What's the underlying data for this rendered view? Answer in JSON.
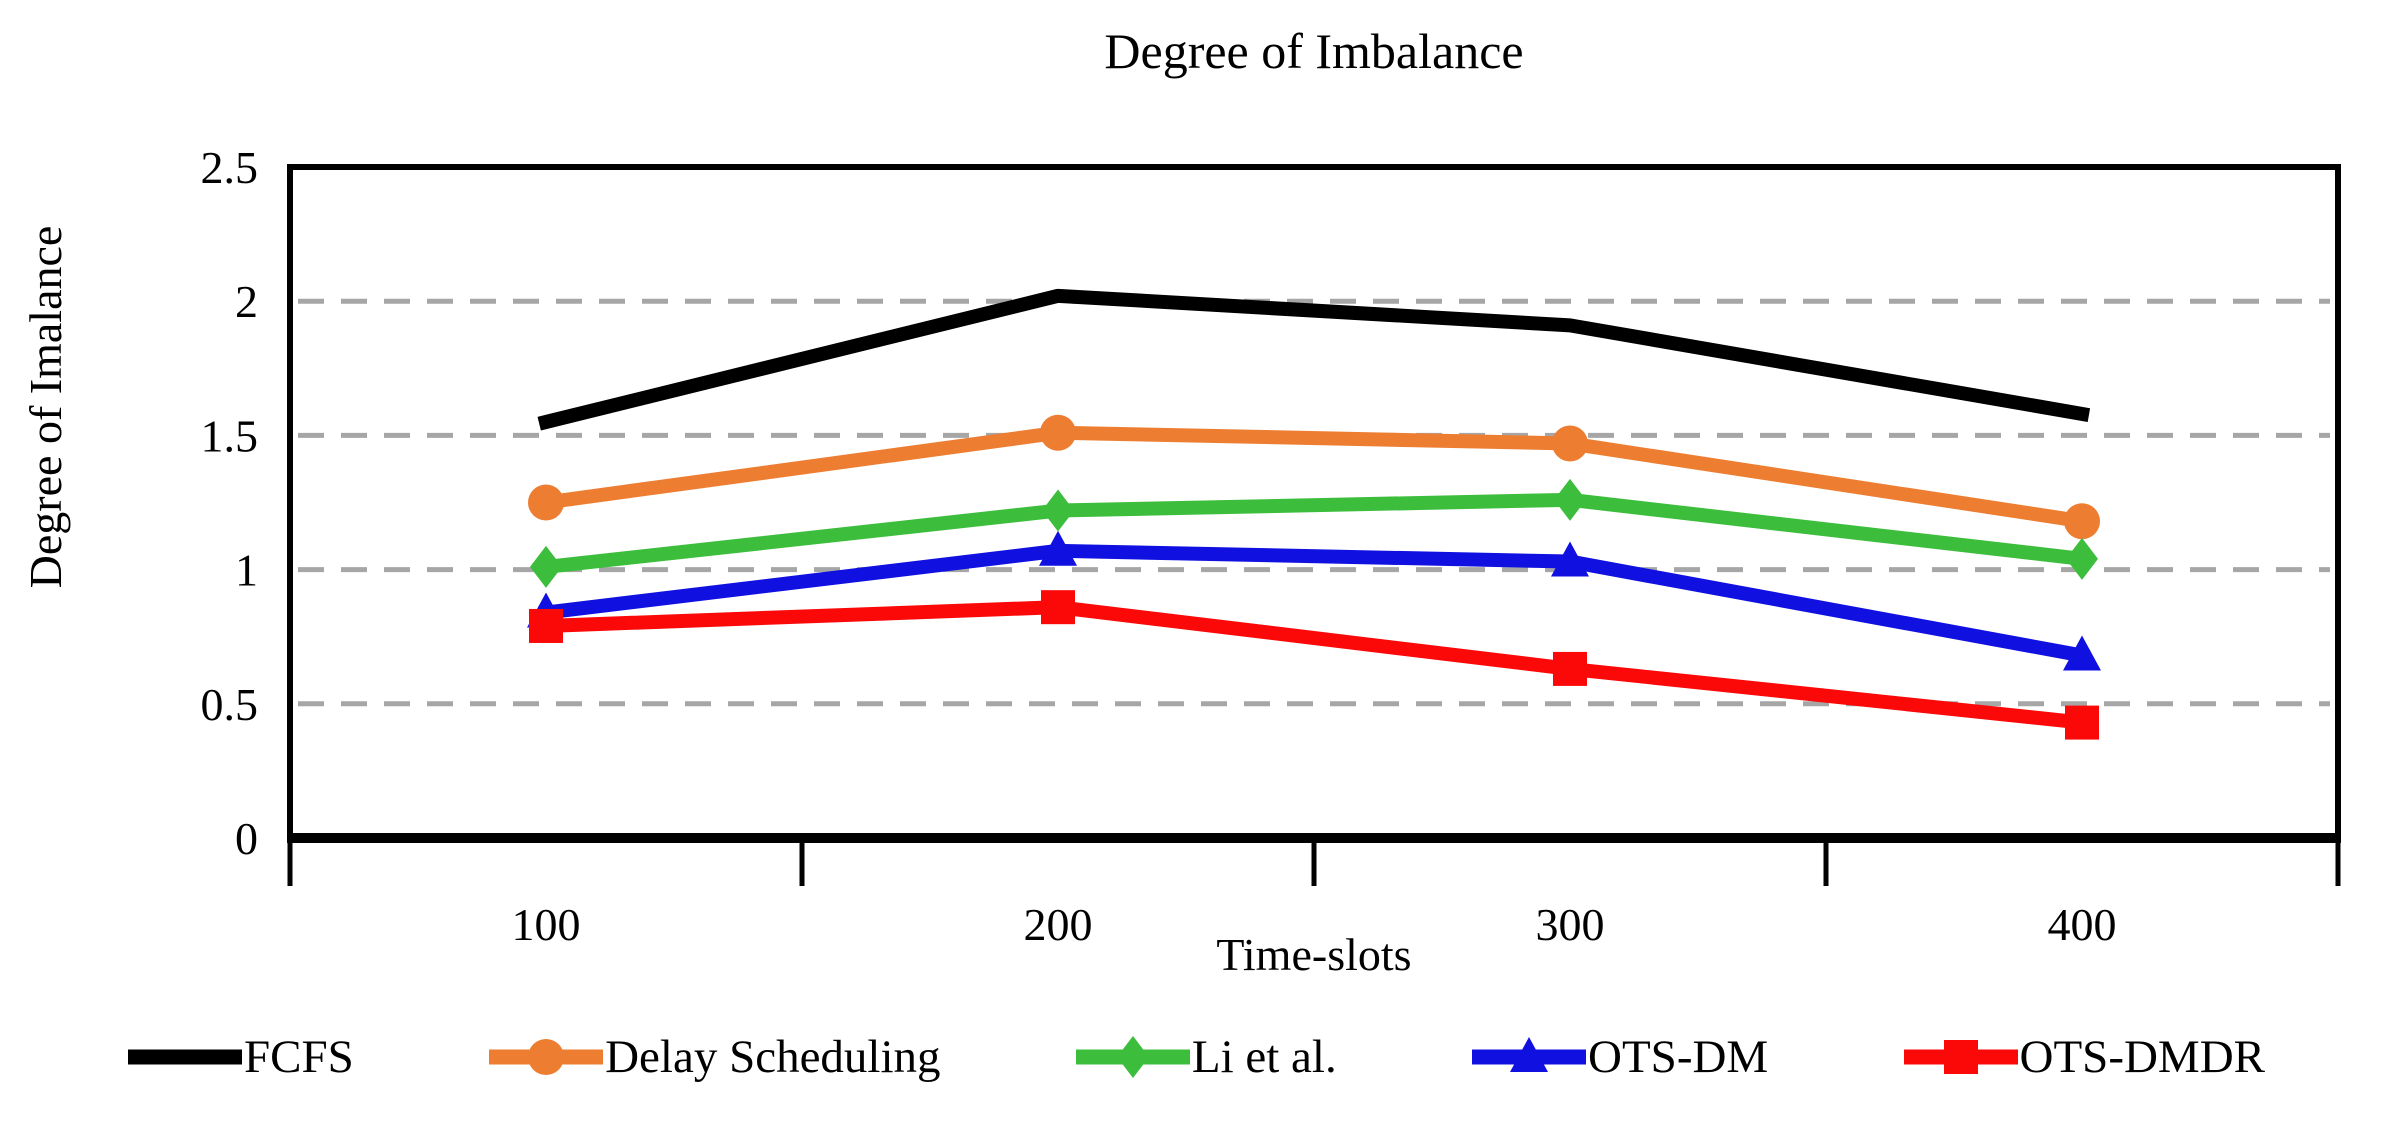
{
  "chart_data": {
    "type": "line",
    "title": "Degree of Imbalance",
    "xlabel": "Time-slots",
    "ylabel": "Degree of Imalance",
    "categories": [
      "100",
      "200",
      "300",
      "400"
    ],
    "ylim": [
      0,
      2.5
    ],
    "yticks": [
      {
        "value": 0,
        "label": "0"
      },
      {
        "value": 0.5,
        "label": "0.5"
      },
      {
        "value": 1,
        "label": "1"
      },
      {
        "value": 1.5,
        "label": "1.5"
      },
      {
        "value": 2,
        "label": "2"
      },
      {
        "value": 2.5,
        "label": "2.5"
      }
    ],
    "grid": {
      "horizontal": true,
      "style": "dashed",
      "color": "#A6A6A6"
    },
    "legend_position": "bottom",
    "axis_color": "#000000",
    "series": [
      {
        "name": "FCFS",
        "color": "#000000",
        "marker": "none",
        "values": [
          1.55,
          2.02,
          1.91,
          1.58
        ]
      },
      {
        "name": "Delay Scheduling",
        "color": "#ED7D31",
        "marker": "circle",
        "values": [
          1.25,
          1.51,
          1.47,
          1.18
        ]
      },
      {
        "name": "Li et al.",
        "color": "#3CBE3C",
        "marker": "diamond",
        "values": [
          1.01,
          1.22,
          1.26,
          1.04
        ]
      },
      {
        "name": "OTS-DM",
        "color": "#1010E0",
        "marker": "triangle",
        "values": [
          0.84,
          1.07,
          1.03,
          0.68
        ]
      },
      {
        "name": "OTS-DMDR",
        "color": "#FB0808",
        "marker": "square",
        "values": [
          0.79,
          0.86,
          0.63,
          0.43
        ]
      }
    ]
  }
}
